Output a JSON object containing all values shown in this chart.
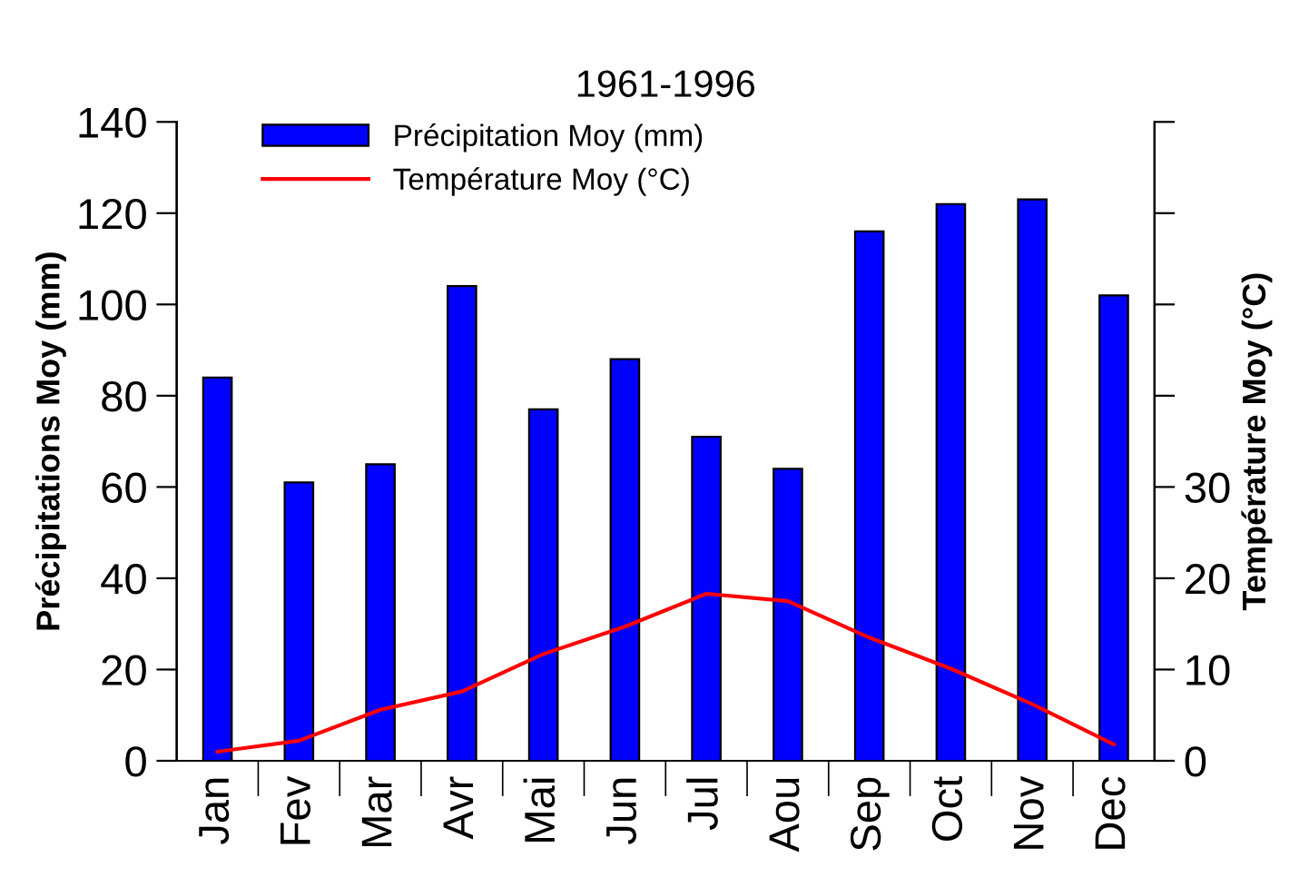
{
  "chart_data": {
    "type": "bar",
    "title": "1961-1996",
    "ylabel": "Précipitations Moy (mm)",
    "y2label": "Température Moy (°C)",
    "categories": [
      "Jan",
      "Fev",
      "Mar",
      "Avr",
      "Mai",
      "Jun",
      "Jul",
      "Aou",
      "Sep",
      "Oct",
      "Nov",
      "Dec"
    ],
    "series": [
      {
        "name": "Précipitation Moy (mm)",
        "color": "#0000ff",
        "values": [
          84,
          61,
          65,
          104,
          77,
          88,
          71,
          64,
          116,
          122,
          123,
          102
        ]
      },
      {
        "name": "Température Moy (°C)",
        "type": "line",
        "axis": "y2",
        "color": "#ff0000",
        "values": [
          1.0,
          2.2,
          5.6,
          7.6,
          11.7,
          14.7,
          18.3,
          17.5,
          13.5,
          10.1,
          6.2,
          1.8
        ]
      }
    ],
    "ylim": [
      0,
      140
    ],
    "yticks": [
      0,
      20,
      40,
      60,
      80,
      100,
      120,
      140
    ],
    "y2lim": [
      0,
      70
    ],
    "y2ticks": [
      0,
      10,
      20,
      30,
      {
        "value": 40,
        "label": null
      },
      {
        "value": 50,
        "label": null
      },
      {
        "value": 60,
        "label": null
      },
      {
        "value": 70,
        "label": null
      }
    ],
    "legend": "top left",
    "grid": false,
    "marker": "none",
    "line_style": "solid"
  }
}
